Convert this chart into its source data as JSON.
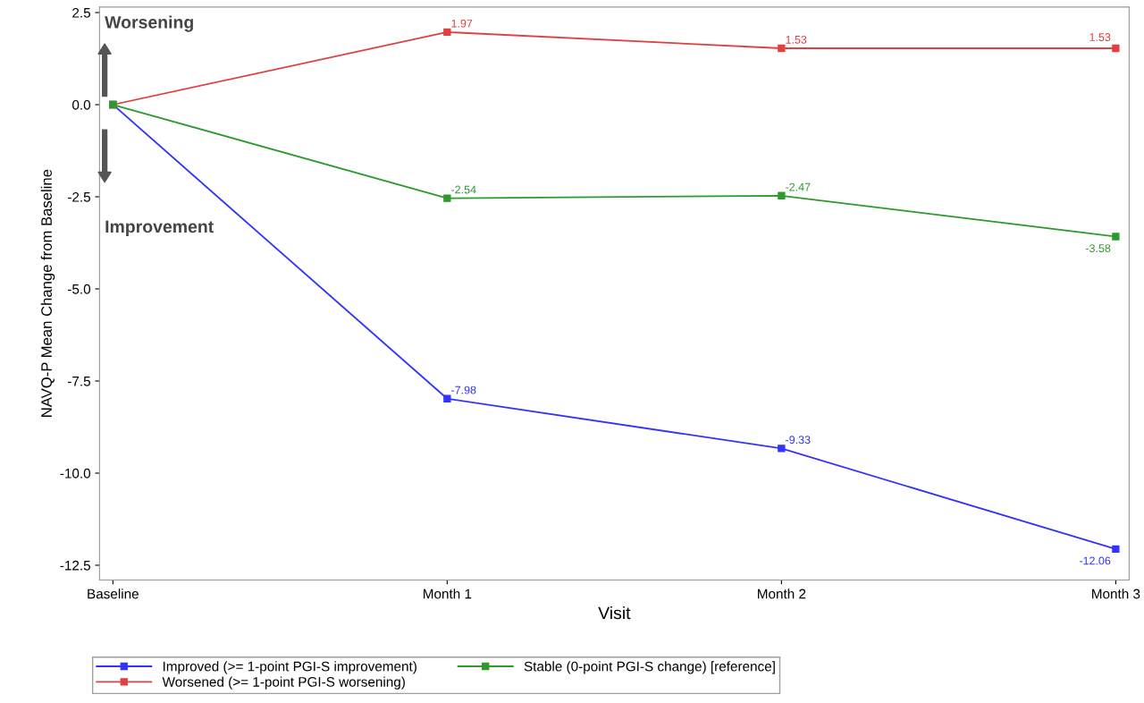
{
  "chart_data": {
    "type": "line",
    "xlabel": "Visit",
    "ylabel": "NAVQ-P Mean Change from Baseline",
    "categories": [
      "Baseline",
      "Month 1",
      "Month 2",
      "Month 3"
    ],
    "series": [
      {
        "name": "Improved (>= 1-point PGI-S improvement)",
        "color": "#3333ff",
        "values": [
          0,
          -7.98,
          -9.33,
          -12.06
        ],
        "value_labels": [
          null,
          "-7.98",
          "-9.33",
          "-12.06"
        ]
      },
      {
        "name": "Worsened (>= 1-point PGI-S worsening)",
        "color": "#e04040",
        "values": [
          0,
          1.97,
          1.53,
          1.53
        ],
        "value_labels": [
          null,
          "1.97",
          "1.53",
          "1.53"
        ]
      },
      {
        "name": "Stable (0-point PGI-S change) [reference]",
        "color": "#2e9a2e",
        "values": [
          0,
          -2.54,
          -2.47,
          -3.58
        ],
        "value_labels": [
          null,
          "-2.54",
          "-2.47",
          "-3.58"
        ]
      }
    ],
    "ylim": [
      -12.9,
      2.65
    ],
    "yticks": [
      {
        "value": -12.5,
        "label": "-12.5"
      },
      {
        "value": -10,
        "label": "-10.0"
      },
      {
        "value": -7.5,
        "label": "-7.5"
      },
      {
        "value": -5,
        "label": "-5.0"
      },
      {
        "value": -2.5,
        "label": "-2.5"
      },
      {
        "value": 0,
        "label": "0.0"
      },
      {
        "value": 2.5,
        "label": "2.5"
      }
    ],
    "annotations": [
      "Worsening",
      "Improvement"
    ],
    "marker": "square",
    "line_style": "solid",
    "grid": false,
    "legend": "bottom"
  }
}
